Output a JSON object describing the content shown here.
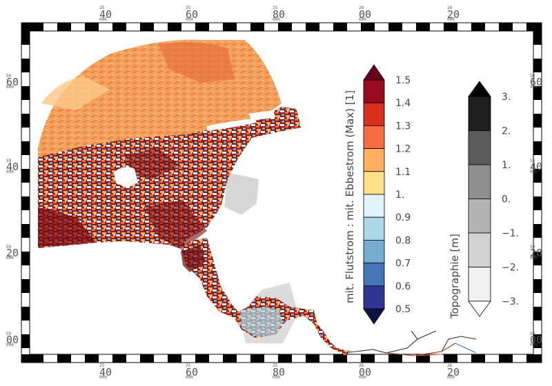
{
  "map": {
    "top_ticks": [
      {
        "minor": "25",
        "major": "40",
        "minor2": "000"
      },
      {
        "minor": "25",
        "major": "60",
        "minor2": "000"
      },
      {
        "minor": "25",
        "major": "80",
        "minor2": "000"
      },
      {
        "minor": "26",
        "major": "00",
        "minor2": "000"
      },
      {
        "minor": "26",
        "major": "20",
        "minor2": "000"
      }
    ],
    "side_ticks": [
      {
        "minor": "59",
        "major": "60",
        "minor2": "000"
      },
      {
        "minor": "59",
        "major": "40",
        "minor2": "000"
      },
      {
        "minor": "59",
        "major": "20",
        "minor2": "000"
      },
      {
        "minor": "59",
        "major": "00",
        "minor2": "000"
      }
    ]
  },
  "legend_ratio": {
    "title": "mit. Flutstrom : mit. Ebbestrom (Max) [1]",
    "labels": [
      "1.5",
      "1.4",
      "1.3",
      "1.2",
      "1.1",
      "1.",
      "0.9",
      "0.8",
      "0.7",
      "0.6",
      "0.5"
    ],
    "colors": [
      "#9a0a1e",
      "#d7301f",
      "#f46d43",
      "#fdae61",
      "#fee08b",
      "#e0f3f8",
      "#abd9e9",
      "#74add1",
      "#4575b4",
      "#313695"
    ],
    "over_color": "#67001f",
    "under_color": "#0d1240"
  },
  "legend_topo": {
    "title": "Topographie [m]",
    "labels": [
      "3.",
      "2.",
      "1.",
      "0.",
      "−1.",
      "−2.",
      "−3."
    ],
    "colors": [
      "#1e1e1e",
      "#5c5c5c",
      "#8f8f8f",
      "#b4b4b4",
      "#d2d2d2",
      "#f0f0f0"
    ],
    "over_color": "#000000",
    "under_color": "#ffffff"
  }
}
